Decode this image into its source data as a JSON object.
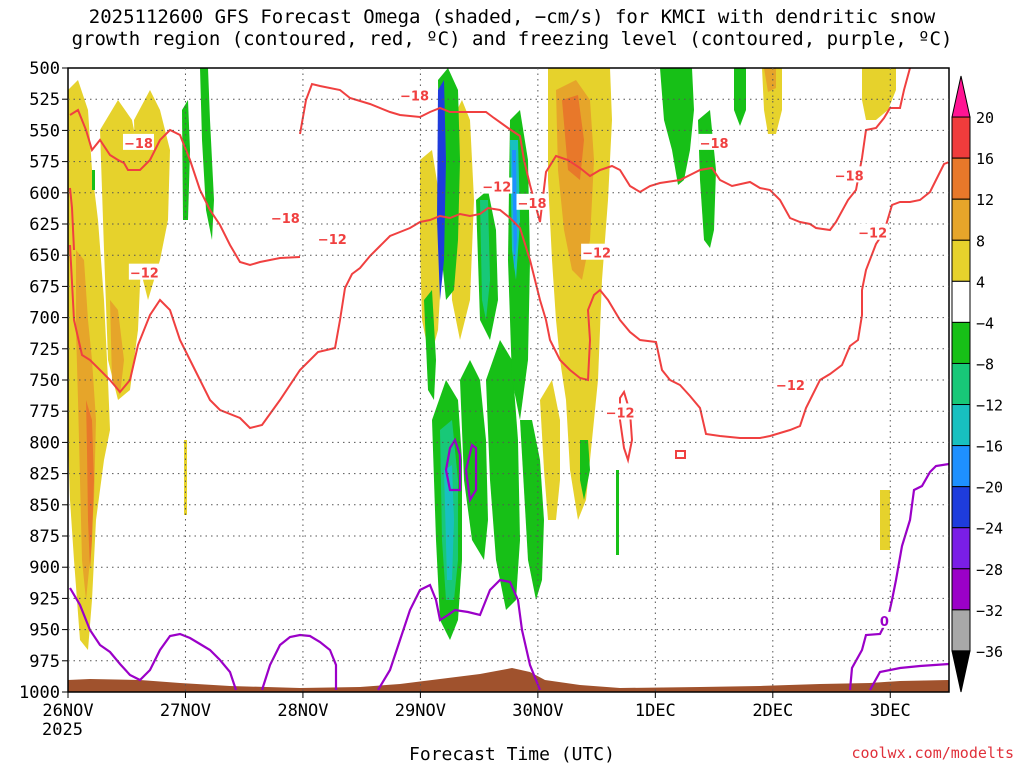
{
  "chart_data": {
    "type": "heatmap",
    "title_line1": "2025112600 GFS Forecast Omega (shaded, −cm/s) for KMCI with dendritic snow",
    "title_line2": "growth region (contoured, red, ºC) and freezing level (contoured, purple, ºC)",
    "xlabel": "Forecast Time (UTC)",
    "year_label": "2025",
    "credit": "coolwx.com/modelts",
    "x_ticks": [
      "26NOV",
      "27NOV",
      "28NOV",
      "29NOV",
      "30NOV",
      "1DEC",
      "2DEC",
      "3DEC"
    ],
    "x_range_days": [
      0,
      7.5
    ],
    "y_ticks": [
      500,
      525,
      550,
      575,
      600,
      625,
      650,
      675,
      700,
      725,
      750,
      775,
      800,
      825,
      850,
      875,
      900,
      925,
      950,
      975,
      1000
    ],
    "y_range_hpa": [
      500,
      1000
    ],
    "grid": true,
    "colorbar": {
      "labels": [
        "20",
        "16",
        "12",
        "8",
        "4",
        "−4",
        "−8",
        "−12",
        "−16",
        "−20",
        "−24",
        "−28",
        "−32",
        "−36"
      ],
      "colors": [
        "#ff1493",
        "#f03c3c",
        "#e8782a",
        "#e6a52a",
        "#e6d22c",
        "#ffffff",
        "#17c017",
        "#18c878",
        "#18c0c0",
        "#1e90ff",
        "#1e3cdc",
        "#7a1ee6",
        "#9b00c8",
        "#a8a8a8",
        "#000000"
      ]
    },
    "contour_labels_red": [
      {
        "x": 0.6,
        "y": 560,
        "text": "−18"
      },
      {
        "x": 1.85,
        "y": 620,
        "text": "−18"
      },
      {
        "x": 2.25,
        "y": 637,
        "text": "−12"
      },
      {
        "x": 0.65,
        "y": 664,
        "text": "−12"
      },
      {
        "x": 2.95,
        "y": 522,
        "text": "−18"
      },
      {
        "x": 3.65,
        "y": 595,
        "text": "−12"
      },
      {
        "x": 3.95,
        "y": 608,
        "text": "−18"
      },
      {
        "x": 4.5,
        "y": 648,
        "text": "−12"
      },
      {
        "x": 4.7,
        "y": 776,
        "text": "−12"
      },
      {
        "x": 5.5,
        "y": 560,
        "text": "−18"
      },
      {
        "x": 6.15,
        "y": 754,
        "text": "−12"
      },
      {
        "x": 6.65,
        "y": 586,
        "text": "−18"
      },
      {
        "x": 6.85,
        "y": 632,
        "text": "−12"
      }
    ],
    "contour_labels_purple": [
      {
        "x": 6.95,
        "y": 943,
        "text": "0"
      }
    ]
  }
}
